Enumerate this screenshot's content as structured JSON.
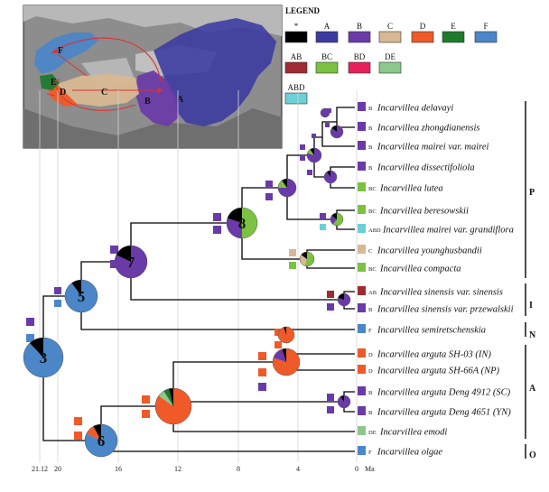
{
  "legend": {
    "title": "LEGEND",
    "items": [
      {
        "label": "*",
        "color": "#000000"
      },
      {
        "label": "A",
        "color": "#3a3aa0"
      },
      {
        "label": "B",
        "color": "#6a3aa8"
      },
      {
        "label": "C",
        "color": "#d8b894"
      },
      {
        "label": "D",
        "color": "#f05a28"
      },
      {
        "label": "E",
        "color": "#1f7a2e"
      },
      {
        "label": "F",
        "color": "#4a86c8"
      },
      {
        "label": "AB",
        "color": "#a02a32"
      },
      {
        "label": "BC",
        "color": "#7cc242"
      },
      {
        "label": "BD",
        "color": "#e8205a"
      },
      {
        "label": "DE",
        "color": "#8cc88c"
      },
      {
        "label": "ABD",
        "color": "#6cd0d8"
      }
    ]
  },
  "map": {
    "labels": [
      "F",
      "E",
      "D",
      "C",
      "B",
      "A"
    ]
  },
  "taxa": [
    {
      "name": "Incarvillea delavayi",
      "area": "B",
      "color": "#6a3aa8"
    },
    {
      "name": "Incarvillea zhongdianensis",
      "area": "B",
      "color": "#6a3aa8"
    },
    {
      "name": "Incarvillea mairei var. mairei",
      "area": "B",
      "color": "#6a3aa8"
    },
    {
      "name": "Incarvillea dissectifoliola",
      "area": "B",
      "color": "#6a3aa8"
    },
    {
      "name": "Incarvillea lutea",
      "area": "BC",
      "color": "#7cc242"
    },
    {
      "name": "Incarvillea beresowskii",
      "area": "BC",
      "color": "#7cc242"
    },
    {
      "name": "Incarvillea mairei var. grandiflora",
      "area": "ABD",
      "color": "#6cd0d8"
    },
    {
      "name": "Incarvillea younghusbandii",
      "area": "C",
      "color": "#d8b894"
    },
    {
      "name": "Incarvillea compacta",
      "area": "BC",
      "color": "#7cc242"
    },
    {
      "name": "Incarvillea sinensis var. sinensis",
      "area": "AB",
      "color": "#a02a32"
    },
    {
      "name": "Incarvillea sinensis var. przewalskii",
      "area": "B",
      "color": "#6a3aa8"
    },
    {
      "name": "Incarvillea semiretschenskia",
      "area": "F",
      "color": "#4a86c8"
    },
    {
      "name": "Incarvillea arguta SH-03 (IN)",
      "area": "D",
      "color": "#f05a28"
    },
    {
      "name": "Incarvillea arguta SH-66A (NP)",
      "area": "D",
      "color": "#f05a28"
    },
    {
      "name": "Incarvillea arguta Deng 4912 (SC)",
      "area": "B",
      "color": "#6a3aa8"
    },
    {
      "name": "Incarvillea arguta Deng 4651 (YN)",
      "area": "B",
      "color": "#6a3aa8"
    },
    {
      "name": "Incarvillea emodi",
      "area": "DE",
      "color": "#8cc88c"
    },
    {
      "name": "Incarvillea olgae",
      "area": "F",
      "color": "#4a86c8"
    }
  ],
  "nodes": [
    {
      "num": "3"
    },
    {
      "num": "5"
    },
    {
      "num": "6"
    },
    {
      "num": "7"
    },
    {
      "num": "8"
    }
  ],
  "clades": [
    {
      "label": "P"
    },
    {
      "label": "I"
    },
    {
      "label": "N"
    },
    {
      "label": "A"
    },
    {
      "label": "O"
    }
  ],
  "axis": {
    "ticks": [
      "21.12",
      "20",
      "16",
      "12",
      "8",
      "4",
      "0"
    ],
    "unit": "Ma"
  }
}
